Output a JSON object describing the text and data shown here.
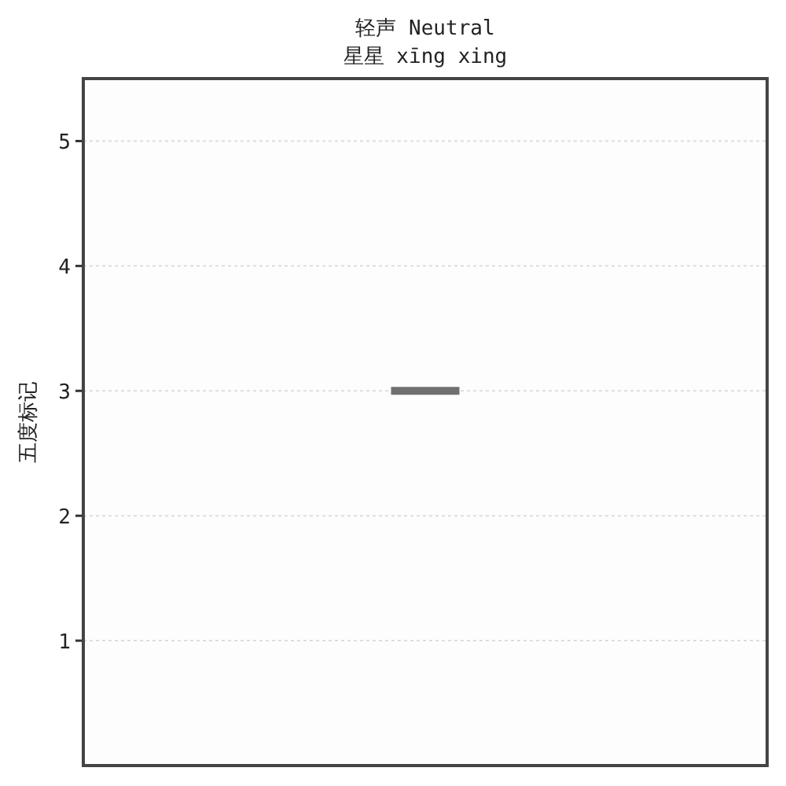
{
  "chart_data": {
    "type": "line",
    "title": "轻声 Neutral",
    "subtitle": "星星 xīng xing",
    "ylabel": "五度标记",
    "categories": [
      null,
      null,
      null,
      null,
      null,
      null,
      null,
      null,
      null,
      null
    ],
    "series": [
      {
        "color": "#707070",
        "values": [
          null,
          null,
          null,
          null,
          3,
          3,
          null,
          null,
          null,
          null
        ]
      }
    ],
    "ylim": [
      0,
      5.5
    ],
    "yticks": [
      1,
      2,
      3,
      4,
      5
    ],
    "grid": "y",
    "marker": "none",
    "line_style": "solid",
    "tick_labels": "y"
  }
}
